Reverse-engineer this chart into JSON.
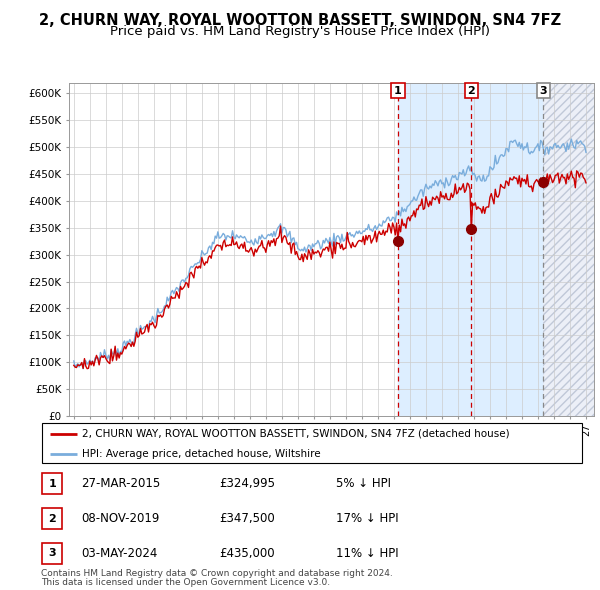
{
  "title": "2, CHURN WAY, ROYAL WOOTTON BASSETT, SWINDON, SN4 7FZ",
  "subtitle": "Price paid vs. HM Land Registry's House Price Index (HPI)",
  "ylim": [
    0,
    620000
  ],
  "yticks": [
    0,
    50000,
    100000,
    150000,
    200000,
    250000,
    300000,
    350000,
    400000,
    450000,
    500000,
    550000,
    600000
  ],
  "ytick_labels": [
    "£0",
    "£50K",
    "£100K",
    "£150K",
    "£200K",
    "£250K",
    "£300K",
    "£350K",
    "£400K",
    "£450K",
    "£500K",
    "£550K",
    "£600K"
  ],
  "hpi_color": "#7aaddc",
  "price_color": "#cc0000",
  "sale1_date": "27-MAR-2015",
  "sale1_price": 324995,
  "sale1_price_str": "£324,995",
  "sale1_hpi_pct": "5% ↓ HPI",
  "sale1_x": 2015.25,
  "sale1_y": 324995,
  "sale2_date": "08-NOV-2019",
  "sale2_price": 347500,
  "sale2_price_str": "£347,500",
  "sale2_hpi_pct": "17% ↓ HPI",
  "sale2_x": 2019.833,
  "sale2_y": 347500,
  "sale3_date": "03-MAY-2024",
  "sale3_price": 435000,
  "sale3_price_str": "£435,000",
  "sale3_hpi_pct": "11% ↓ HPI",
  "sale3_x": 2024.333,
  "sale3_y": 435000,
  "legend_line1": "2, CHURN WAY, ROYAL WOOTTON BASSETT, SWINDON, SN4 7FZ (detached house)",
  "legend_line2": "HPI: Average price, detached house, Wiltshire",
  "footnote1": "Contains HM Land Registry data © Crown copyright and database right 2024.",
  "footnote2": "This data is licensed under the Open Government Licence v3.0.",
  "title_fontsize": 10.5,
  "subtitle_fontsize": 9.5,
  "background_color": "#ffffff",
  "plot_bg_color": "#ffffff",
  "grid_color": "#cccccc",
  "shaded_region_color": "#ddeeff",
  "xlim_start": 1994.7,
  "xlim_end": 2027.5,
  "marker_color": "#8b0000"
}
